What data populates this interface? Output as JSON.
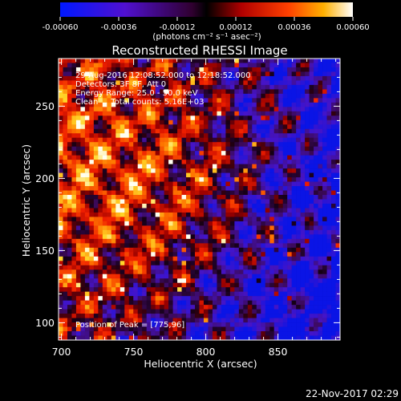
{
  "colorbar": {
    "ticks": [
      {
        "value": -0.0006,
        "label": "-0.00060"
      },
      {
        "value": -0.00036,
        "label": "-0.00036"
      },
      {
        "value": -0.00012,
        "label": "-0.00012"
      },
      {
        "value": 0.00012,
        "label": "0.00012"
      },
      {
        "value": 0.00036,
        "label": "0.00036"
      },
      {
        "value": 0.0006,
        "label": "0.00060"
      }
    ],
    "range": [
      -0.0006,
      0.0006
    ],
    "unit_label": "(photons cm⁻² s⁻¹ asec⁻²)"
  },
  "chart_data": {
    "type": "heatmap",
    "title": "Reconstructed RHESSI Image",
    "xlabel": "Heliocentric X (arcsec)",
    "ylabel": "Heliocentric Y (arcsec)",
    "xlim": [
      698,
      893
    ],
    "ylim": [
      88,
      283
    ],
    "xticks": [
      700,
      750,
      800,
      850
    ],
    "yticks": [
      100,
      150,
      200,
      250
    ],
    "annotations": [
      "29-Aug-2016 12:08:52.000 to 12:18:52.000",
      "Detectors: 3F 8F, Att 0",
      "Energy Range: 25.0 - 50.0 keV",
      "Clean     Total counts: 5.16E+03"
    ],
    "peak_label": "Position of Peak = [775,96]",
    "peak_position": [
      775,
      96
    ]
  },
  "footer": {
    "timestamp": "22-Nov-2017 02:29"
  },
  "colors": {
    "background": "#000000",
    "foreground": "#ffffff"
  }
}
